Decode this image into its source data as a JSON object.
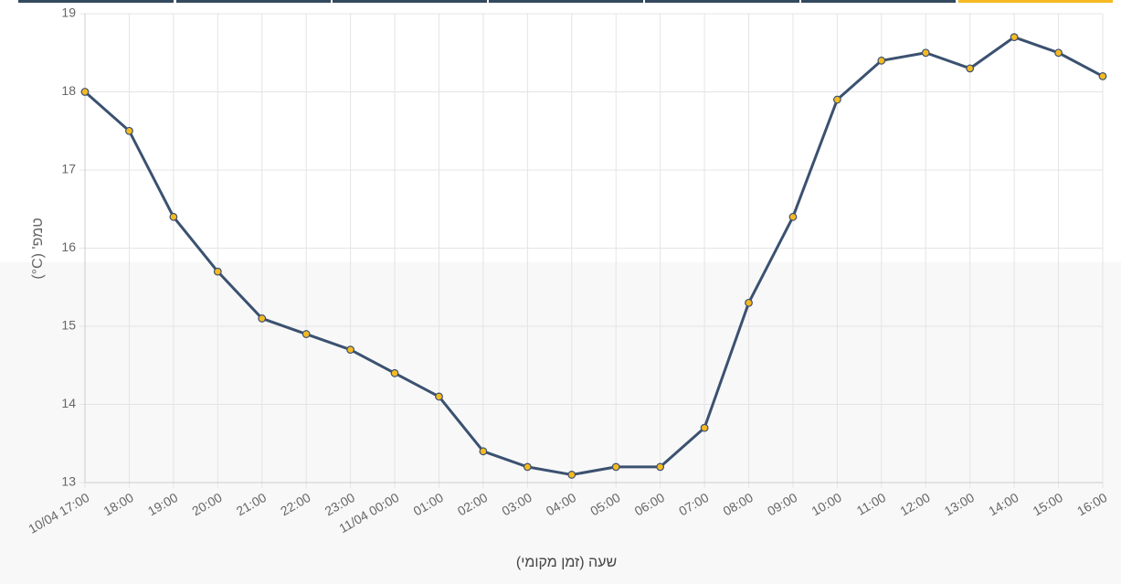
{
  "chart_data": {
    "type": "line",
    "x_label": "שעה (זמן מקומי)",
    "y_label": "טמפ' (C°)",
    "categories": [
      "10/04 17:00",
      "18:00",
      "19:00",
      "20:00",
      "21:00",
      "22:00",
      "23:00",
      "11/04 00:00",
      "01:00",
      "02:00",
      "03:00",
      "04:00",
      "05:00",
      "06:00",
      "07:00",
      "08:00",
      "09:00",
      "10:00",
      "11:00",
      "12:00",
      "13:00",
      "14:00",
      "15:00",
      "16:00"
    ],
    "values": [
      18,
      17.5,
      16.4,
      15.7,
      15.1,
      14.9,
      14.7,
      14.4,
      14.1,
      13.4,
      13.2,
      13.1,
      13.2,
      13.2,
      13.7,
      15.3,
      16.4,
      17.9,
      18.4,
      18.5,
      18.3,
      18.7,
      18.5,
      18.2
    ],
    "color": "#3b5170",
    "marker_color": "#f5b921",
    "ylim": [
      13,
      19
    ],
    "yticks": [
      13,
      14,
      15,
      16,
      17,
      18,
      19
    ],
    "grid": true
  }
}
